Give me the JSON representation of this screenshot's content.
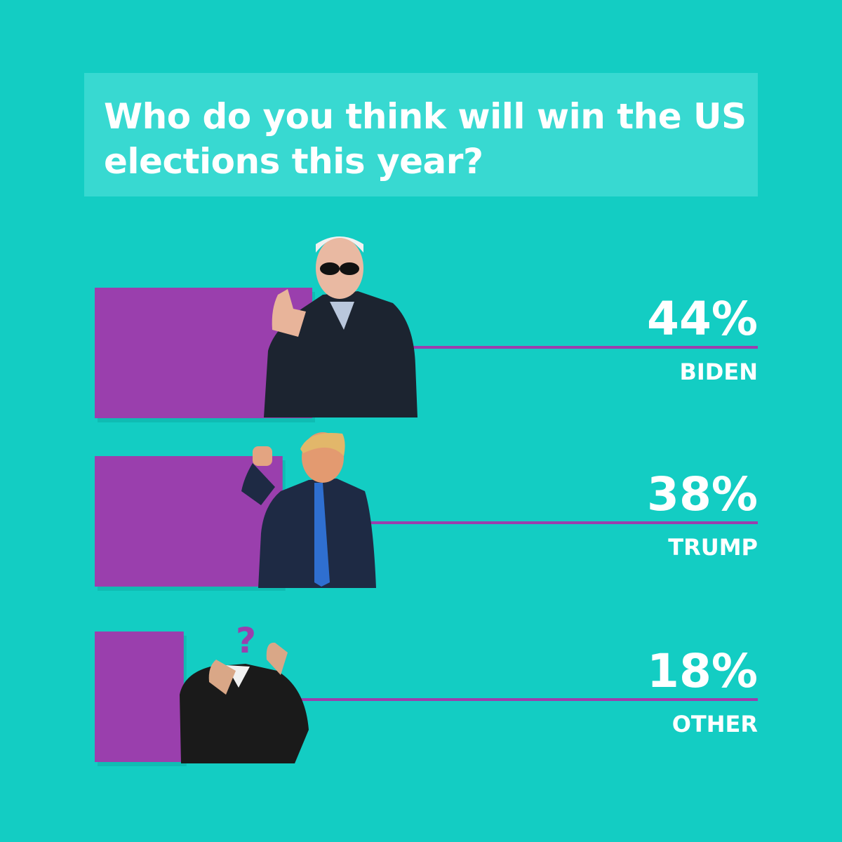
{
  "chart_data": {
    "type": "bar",
    "title": "Who do you think will win the US elections this year?",
    "categories": [
      "BIDEN",
      "TRUMP",
      "OTHER"
    ],
    "values": [
      44,
      38,
      18
    ],
    "value_labels": [
      "44%",
      "38%",
      "18%"
    ],
    "unit": "%",
    "orientation": "horizontal",
    "grid": false,
    "xlim": [
      0,
      100
    ]
  },
  "colors": {
    "background": "#13cdc3",
    "title_box": "#38d9d1",
    "bar": "#9a3fad",
    "text": "#ffffff"
  },
  "icons": [
    "biden-photo",
    "trump-photo",
    "headless-suit-photo",
    "question-mark-icon"
  ]
}
